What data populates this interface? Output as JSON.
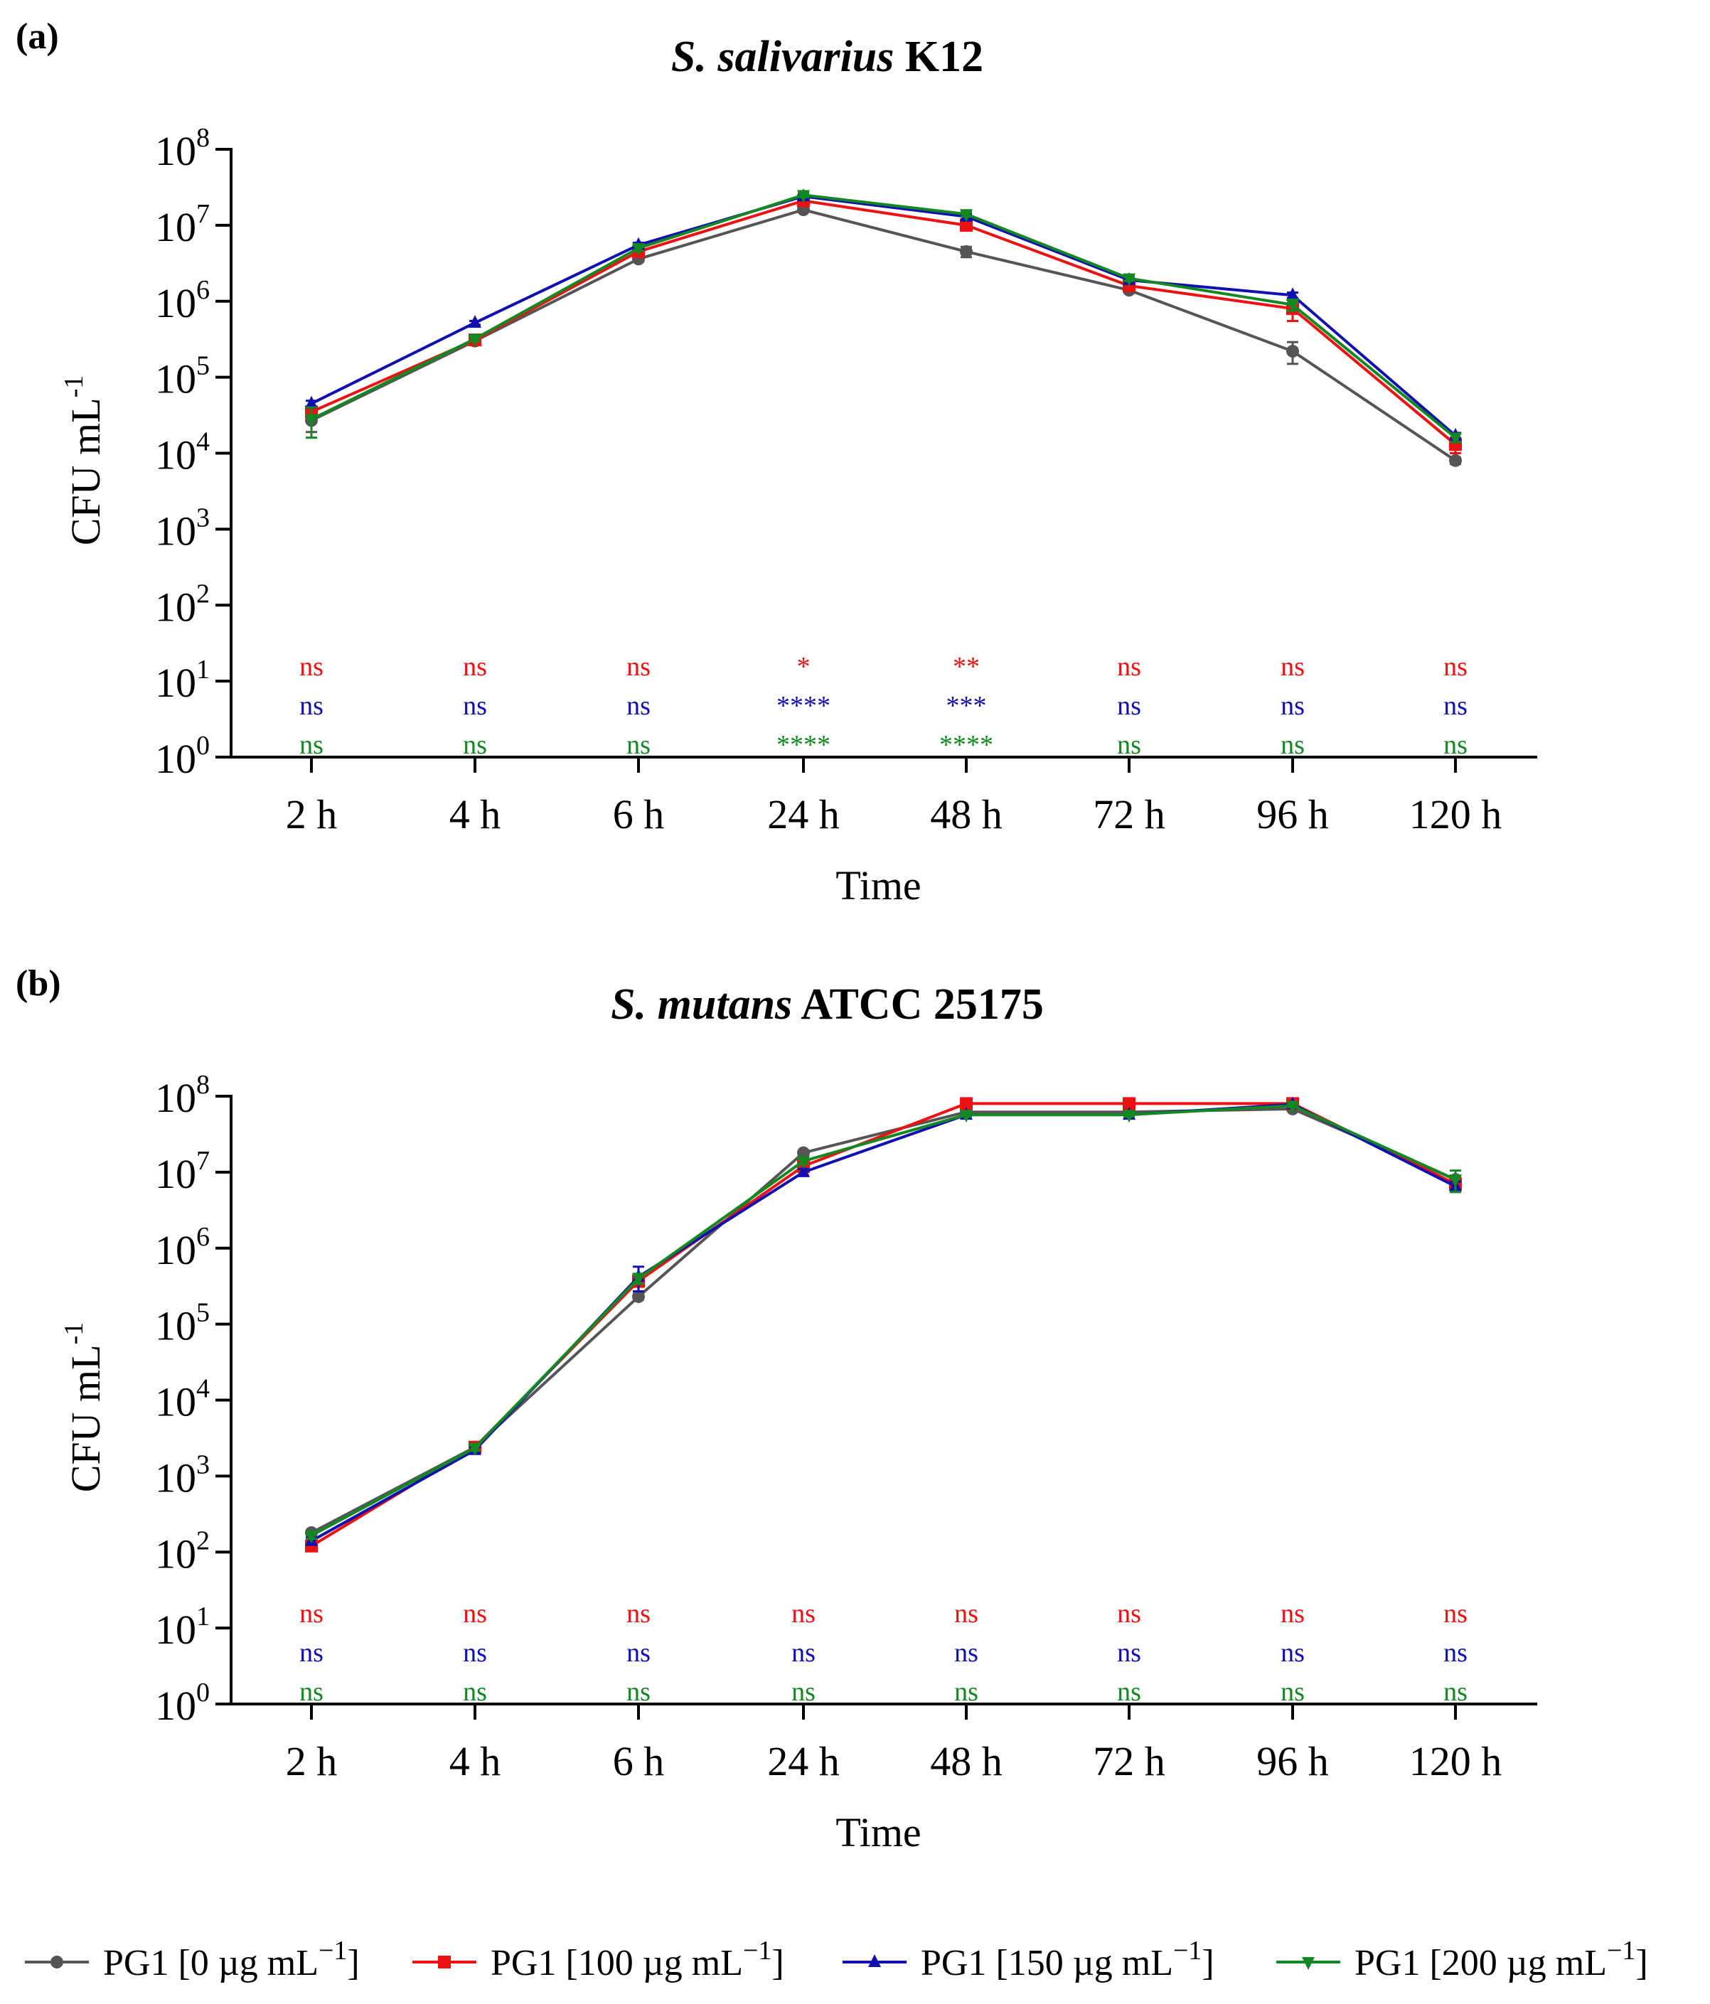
{
  "figure": {
    "legend": [
      {
        "label_prefix": "PG1 [0 µg mL",
        "label_exp": "−1",
        "label_suffix": "]",
        "color": "#555555",
        "marker": "circle"
      },
      {
        "label_prefix": "PG1 [100 µg mL",
        "label_exp": "−1",
        "label_suffix": "]",
        "color": "#ee1111",
        "marker": "square"
      },
      {
        "label_prefix": "PG1 [150 µg mL",
        "label_exp": "−1",
        "label_suffix": "]",
        "color": "#1010b0",
        "marker": "triangle-up"
      },
      {
        "label_prefix": "PG1 [200 µg mL",
        "label_exp": "−1",
        "label_suffix": "]",
        "color": "#118822",
        "marker": "triangle-down"
      }
    ]
  },
  "chart_data": [
    {
      "type": "line",
      "panel_label": "(a)",
      "title_italic": "S. salivarius",
      "title_rest": " K12",
      "xlabel": "Time",
      "ylabel_main": "CFU mL",
      "ylabel_exp": "-1",
      "yscale": "log10",
      "ylim": [
        1,
        100000000
      ],
      "ytick_base": "10",
      "ytick_exponents": [
        "0",
        "1",
        "2",
        "3",
        "4",
        "5",
        "6",
        "7",
        "8"
      ],
      "categories": [
        "2 h",
        "4 h",
        "6 h",
        "24 h",
        "48 h",
        "72 h",
        "96 h",
        "120 h"
      ],
      "series": [
        {
          "name": "PG1 [0 µg mL−1]",
          "color": "#555555",
          "marker": "circle",
          "values": [
            27000,
            300000,
            3600000,
            16000000,
            4500000,
            1400000,
            220000,
            8000
          ],
          "errors": [
            8000,
            20000,
            300000,
            1000000,
            700000,
            100000,
            70000,
            800
          ]
        },
        {
          "name": "PG1 [100 µg mL−1]",
          "color": "#ee1111",
          "marker": "square",
          "values": [
            35000,
            310000,
            4500000,
            21000000,
            10000000,
            1600000,
            800000,
            13000
          ],
          "errors": [
            5000,
            20000,
            400000,
            1500000,
            1500000,
            100000,
            250000,
            3000
          ]
        },
        {
          "name": "PG1 [150 µg mL−1]",
          "color": "#1010b0",
          "marker": "triangle-up",
          "values": [
            45000,
            520000,
            5500000,
            24000000,
            13000000,
            1900000,
            1200000,
            17000
          ],
          "errors": [
            4000,
            30000,
            400000,
            1000000,
            1000000,
            100000,
            100000,
            1500
          ]
        },
        {
          "name": "PG1 [200 µg mL−1]",
          "color": "#118822",
          "marker": "triangle-down",
          "values": [
            28000,
            320000,
            5000000,
            25000000,
            14000000,
            2000000,
            900000,
            16000
          ],
          "errors": [
            12000,
            20000,
            400000,
            1500000,
            1000000,
            150000,
            150000,
            2000
          ]
        }
      ],
      "significance": {
        "red": [
          "ns",
          "ns",
          "ns",
          "*",
          "**",
          "ns",
          "ns",
          "ns"
        ],
        "blue": [
          "ns",
          "ns",
          "ns",
          "****",
          "***",
          "ns",
          "ns",
          "ns"
        ],
        "green": [
          "ns",
          "ns",
          "ns",
          "****",
          "****",
          "ns",
          "ns",
          "ns"
        ]
      }
    },
    {
      "type": "line",
      "panel_label": "(b)",
      "title_italic": "S. mutans",
      "title_rest": " ATCC 25175",
      "xlabel": "Time",
      "ylabel_main": "CFU mL",
      "ylabel_exp": "-1",
      "yscale": "log10",
      "ylim": [
        1,
        100000000
      ],
      "ytick_base": "10",
      "ytick_exponents": [
        "0",
        "1",
        "2",
        "3",
        "4",
        "5",
        "6",
        "7",
        "8"
      ],
      "categories": [
        "2 h",
        "4 h",
        "6 h",
        "24 h",
        "48 h",
        "72 h",
        "96 h",
        "120 h"
      ],
      "series": [
        {
          "name": "PG1 [0 µg mL−1]",
          "color": "#555555",
          "marker": "circle",
          "values": [
            180,
            2400,
            230000,
            18000000,
            62000000,
            62000000,
            68000000,
            8000000
          ],
          "errors": [
            15,
            200,
            20000,
            1000000,
            3000000,
            3000000,
            3000000,
            1000000
          ]
        },
        {
          "name": "PG1 [100 µg mL−1]",
          "color": "#ee1111",
          "marker": "square",
          "values": [
            120,
            2400,
            370000,
            12000000,
            80000000,
            80000000,
            80000000,
            7000000
          ],
          "errors": [
            15,
            200,
            60000,
            2000000,
            3000000,
            3000000,
            3000000,
            1500000
          ]
        },
        {
          "name": "PG1 [150 µg mL−1]",
          "color": "#1010b0",
          "marker": "triangle-up",
          "values": [
            140,
            2200,
            420000,
            10000000,
            57000000,
            57000000,
            78000000,
            6500000
          ],
          "errors": [
            15,
            200,
            150000,
            1000000,
            3000000,
            3000000,
            3000000,
            1000000
          ]
        },
        {
          "name": "PG1 [200 µg mL−1]",
          "color": "#118822",
          "marker": "triangle-down",
          "values": [
            165,
            2350,
            400000,
            14000000,
            57000000,
            57000000,
            75000000,
            8000000
          ],
          "errors": [
            15,
            200,
            60000,
            1000000,
            3000000,
            3000000,
            3000000,
            2500000
          ]
        }
      ],
      "significance": {
        "red": [
          "ns",
          "ns",
          "ns",
          "ns",
          "ns",
          "ns",
          "ns",
          "ns"
        ],
        "blue": [
          "ns",
          "ns",
          "ns",
          "ns",
          "ns",
          "ns",
          "ns",
          "ns"
        ],
        "green": [
          "ns",
          "ns",
          "ns",
          "ns",
          "ns",
          "ns",
          "ns",
          "ns"
        ]
      }
    }
  ]
}
